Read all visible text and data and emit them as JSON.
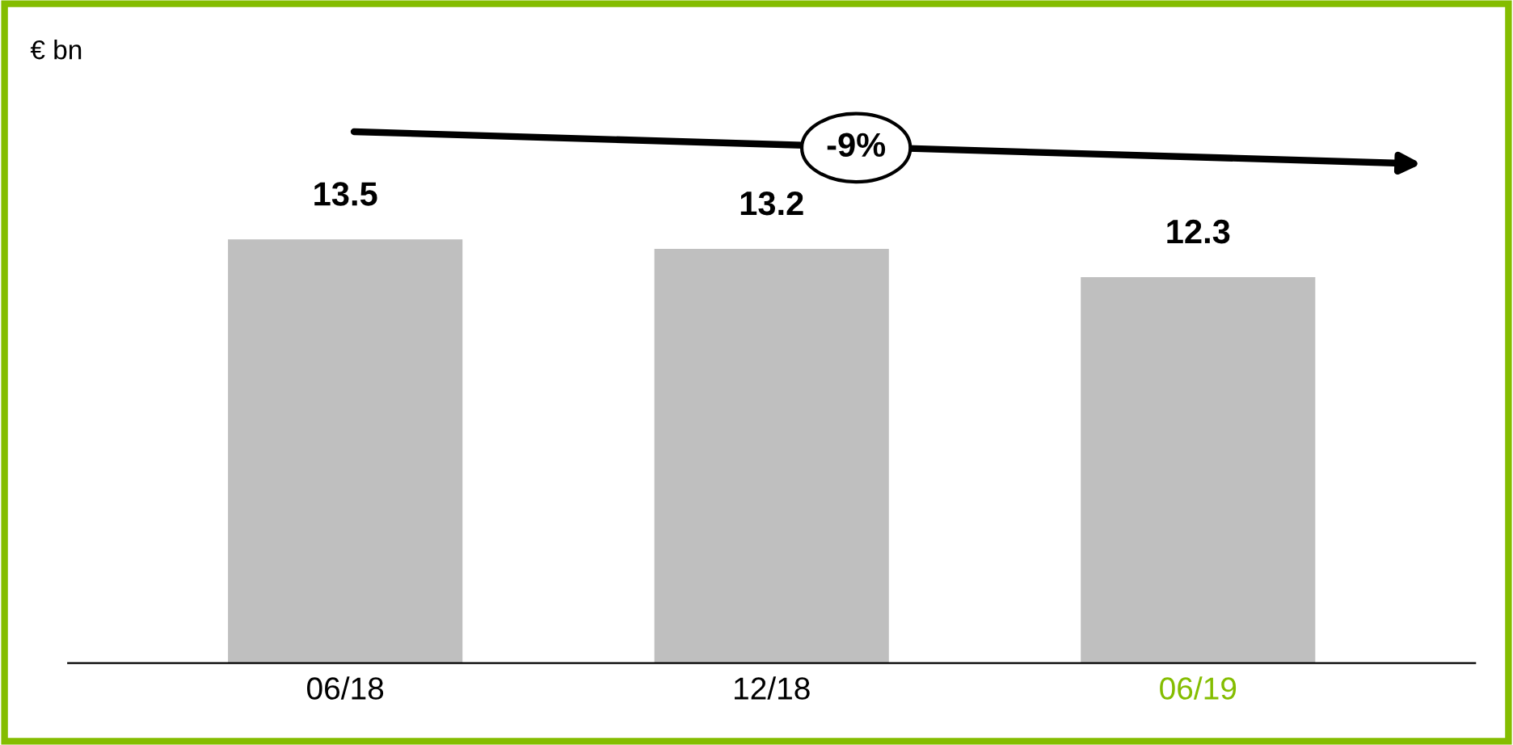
{
  "chart_data": {
    "type": "bar",
    "categories": [
      "06/18",
      "12/18",
      "06/19"
    ],
    "values": [
      13.5,
      13.2,
      12.3
    ],
    "color": "#bfbfbf",
    "data_labels": true,
    "annotations": [
      "€ bn",
      "-9%"
    ],
    "grid": false,
    "legend": false
  }
}
